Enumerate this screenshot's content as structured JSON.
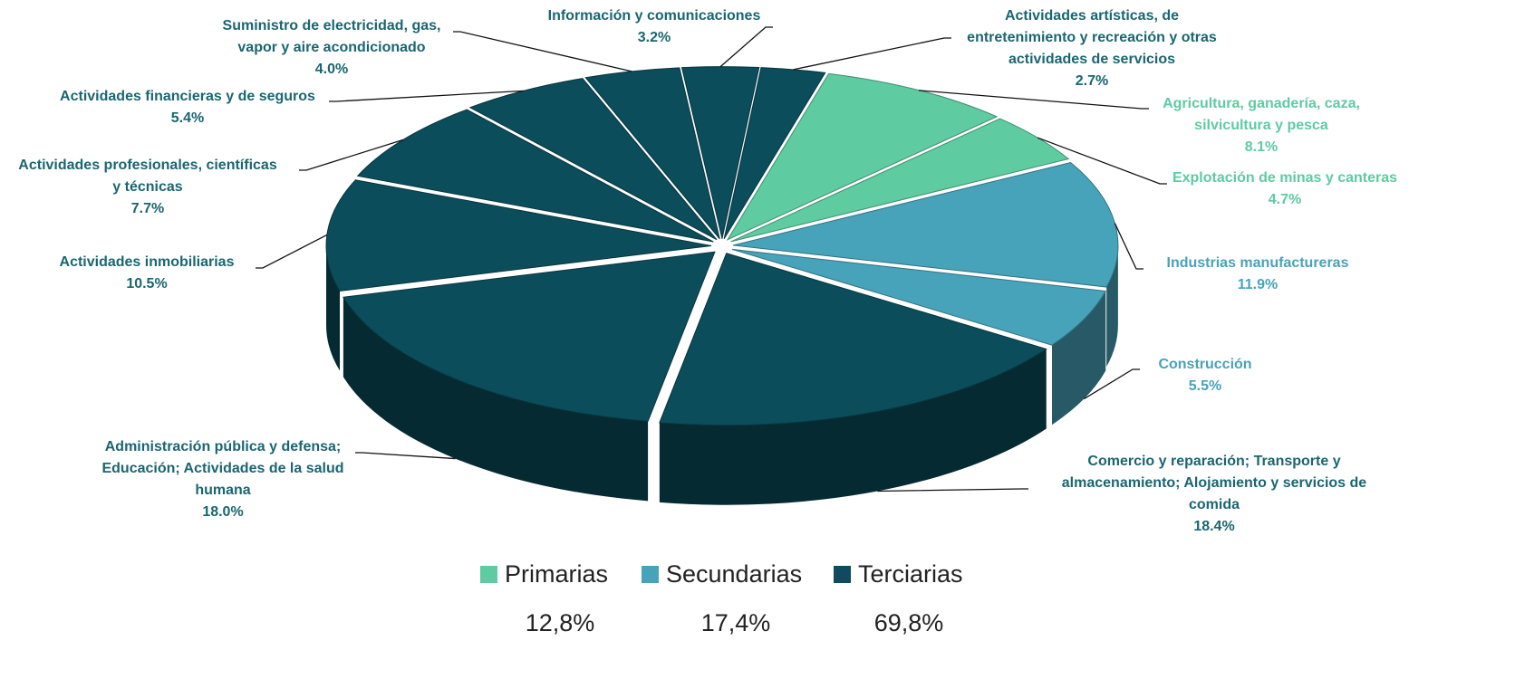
{
  "chart_data": {
    "type": "pie",
    "slices": [
      {
        "name": [
          "Información y comunicaciones"
        ],
        "value": 3.2,
        "value_label": "3.2%",
        "color": "#0b4d5a",
        "label_color": "#1a6670"
      },
      {
        "name": [
          "Actividades artísticas, de",
          "entretenimiento y recreación y otras",
          "actividades de servicios"
        ],
        "value": 2.7,
        "value_label": "2.7%",
        "color": "#0b4d5a",
        "label_color": "#1a6670"
      },
      {
        "name": [
          "Agricultura, ganadería, caza,",
          "silvicultura y pesca"
        ],
        "value": 8.1,
        "value_label": "8.1%",
        "color": "#5ecba1",
        "label_color": "#5ecba1"
      },
      {
        "name": [
          "Explotación de minas y canteras"
        ],
        "value": 4.7,
        "value_label": "4.7%",
        "color": "#5ecba1",
        "label_color": "#5ecba1"
      },
      {
        "name": [
          "Industrias manufactureras"
        ],
        "value": 11.9,
        "value_label": "11.9%",
        "color": "#47a3b9",
        "label_color": "#47a3b9"
      },
      {
        "name": [
          "Construcción"
        ],
        "value": 5.5,
        "value_label": "5.5%",
        "color": "#47a3b9",
        "label_color": "#47a3b9"
      },
      {
        "name": [
          "Comercio y reparación; Transporte y",
          "almacenamiento; Alojamiento y servicios de",
          "comida"
        ],
        "value": 18.4,
        "value_label": "18.4%",
        "color": "#0b4d5a",
        "label_color": "#1a6670"
      },
      {
        "name": [
          "Administración pública y defensa;",
          "Educación; Actividades de la salud",
          "humana"
        ],
        "value": 18.0,
        "value_label": "18.0%",
        "color": "#0b4d5a",
        "label_color": "#1a6670"
      },
      {
        "name": [
          "Actividades inmobiliarias"
        ],
        "value": 10.5,
        "value_label": "10.5%",
        "color": "#0b4d5a",
        "label_color": "#1a6670"
      },
      {
        "name": [
          "Actividades profesionales, científicas",
          "y técnicas"
        ],
        "value": 7.7,
        "value_label": "7.7%",
        "color": "#0b4d5a",
        "label_color": "#1a6670"
      },
      {
        "name": [
          "Actividades financieras y de seguros"
        ],
        "value": 5.4,
        "value_label": "5.4%",
        "color": "#0b4d5a",
        "label_color": "#1a6670"
      },
      {
        "name": [
          "Suministro de electricidad, gas,",
          "vapor y aire acondicionado"
        ],
        "value": 4.0,
        "value_label": "4.0%",
        "color": "#0b4d5a",
        "label_color": "#1a6670"
      }
    ],
    "legend": [
      {
        "name": "Primarias",
        "color": "#5ecba1",
        "value": 12.8,
        "value_label": "12,8%"
      },
      {
        "name": "Secundarias",
        "color": "#47a3b9",
        "value": 17.4,
        "value_label": "17,4%"
      },
      {
        "name": "Terciarias",
        "color": "#0f4a60",
        "value": 69.8,
        "value_label": "69,8%"
      }
    ]
  }
}
